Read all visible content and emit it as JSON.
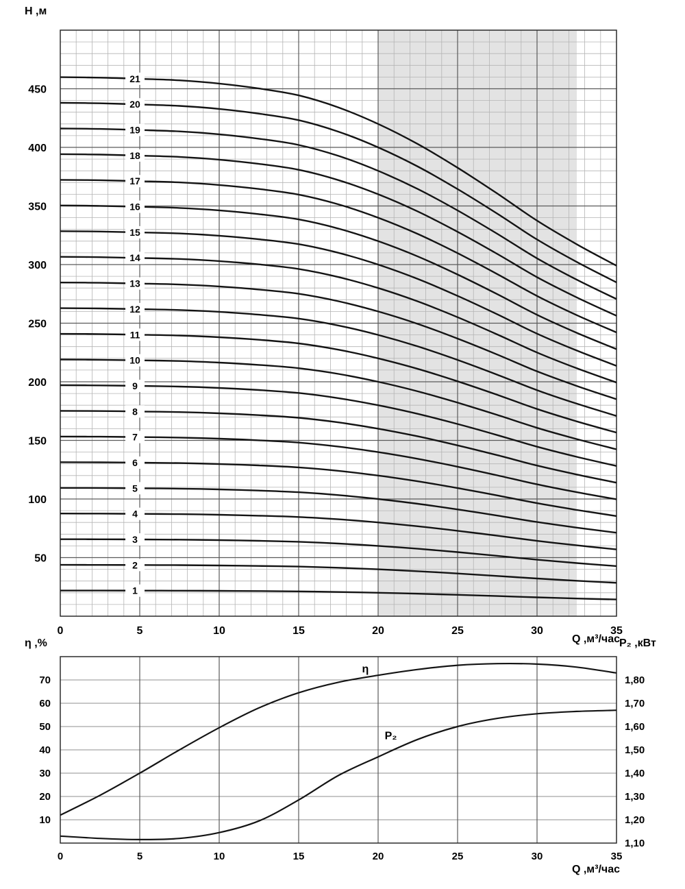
{
  "figure": {
    "background": "#ffffff",
    "curve_color": "#141414",
    "grid_major_color": "#5a5a5a",
    "grid_mid_color": "#8f8f8f",
    "grid_minor_color": "#b4b4b4",
    "border_color": "#2a2a2a",
    "band_color": "#e3e3e3",
    "text_color": "#000000"
  },
  "chart_data": [
    {
      "id": "head-flow-chart",
      "type": "line",
      "title": "",
      "xlabel": "Q ,м³/час",
      "ylabel": "H ,м",
      "xlim": [
        0,
        35
      ],
      "ylim": [
        0,
        500
      ],
      "x_major_ticks": [
        0,
        5,
        10,
        15,
        20,
        25,
        30,
        35
      ],
      "x_minor_step": 1,
      "y_major_ticks": [
        50,
        100,
        150,
        200,
        250,
        300,
        350,
        400,
        450
      ],
      "y_minor_step": 10,
      "grid": true,
      "recommended_band": {
        "q_from": 20,
        "q_to": 32.5
      },
      "model": "H(Q) = stages x head_per_stage(Q)",
      "q": [
        0,
        2.5,
        5,
        7.5,
        10,
        12.5,
        15,
        17.5,
        20,
        22.5,
        25,
        27.5,
        30,
        32.5,
        35
      ],
      "head_per_stage": [
        21.9,
        21.88,
        21.83,
        21.77,
        21.64,
        21.44,
        21.16,
        20.67,
        20.0,
        19.18,
        18.22,
        17.17,
        16.07,
        15.11,
        14.24
      ],
      "curve_label_q": 4.7,
      "curves": [
        {
          "label": "1",
          "stages": 1
        },
        {
          "label": "2",
          "stages": 2
        },
        {
          "label": "3",
          "stages": 3
        },
        {
          "label": "4",
          "stages": 4
        },
        {
          "label": "5",
          "stages": 5
        },
        {
          "label": "6",
          "stages": 6
        },
        {
          "label": "7",
          "stages": 7
        },
        {
          "label": "8",
          "stages": 8
        },
        {
          "label": "9",
          "stages": 9
        },
        {
          "label": "10",
          "stages": 10
        },
        {
          "label": "11",
          "stages": 11
        },
        {
          "label": "12",
          "stages": 12
        },
        {
          "label": "13",
          "stages": 13
        },
        {
          "label": "14",
          "stages": 14
        },
        {
          "label": "15",
          "stages": 15
        },
        {
          "label": "16",
          "stages": 16
        },
        {
          "label": "17",
          "stages": 17
        },
        {
          "label": "18",
          "stages": 18
        },
        {
          "label": "19",
          "stages": 19
        },
        {
          "label": "20",
          "stages": 20
        },
        {
          "label": "21",
          "stages": 21
        }
      ]
    },
    {
      "id": "efficiency-power-chart",
      "type": "line",
      "title": "",
      "xlabel": "Q ,м³/час",
      "ylabel_left": "η ,%",
      "ylabel_right": "P₂ ,кВт",
      "xlim": [
        0,
        35
      ],
      "ylim_left": [
        0,
        80
      ],
      "ylim_right": [
        1.1,
        1.9
      ],
      "x_major_ticks": [
        0,
        5,
        10,
        15,
        20,
        25,
        30,
        35
      ],
      "y_left_ticks": [
        10,
        20,
        30,
        40,
        50,
        60,
        70
      ],
      "y_right_ticks": [
        {
          "label": "1,10",
          "value": 1.1
        },
        {
          "label": "1,20",
          "value": 1.2
        },
        {
          "label": "1,30",
          "value": 1.3
        },
        {
          "label": "1,40",
          "value": 1.4
        },
        {
          "label": "1,50",
          "value": 1.5
        },
        {
          "label": "1,60",
          "value": 1.6
        },
        {
          "label": "1,70",
          "value": 1.7
        },
        {
          "label": "1,80",
          "value": 1.8
        }
      ],
      "q": [
        0,
        2.5,
        5,
        7.5,
        10,
        12.5,
        15,
        17.5,
        20,
        22.5,
        25,
        27.5,
        30,
        32.5,
        35
      ],
      "series": [
        {
          "name": "eta",
          "axis": "left",
          "values": [
            12,
            20.5,
            30,
            40,
            49.5,
            58,
            64.5,
            69,
            72,
            74.5,
            76.3,
            77,
            76.8,
            75.5,
            73
          ],
          "label": {
            "text": "η",
            "q": 19.2,
            "value": 74.7
          }
        },
        {
          "name": "P2",
          "axis": "right",
          "values": [
            1.13,
            1.12,
            1.115,
            1.12,
            1.145,
            1.195,
            1.285,
            1.39,
            1.47,
            1.545,
            1.6,
            1.635,
            1.655,
            1.665,
            1.67
          ],
          "label": {
            "text": "P₂",
            "q": 20.8,
            "value": 1.56
          }
        }
      ]
    }
  ]
}
